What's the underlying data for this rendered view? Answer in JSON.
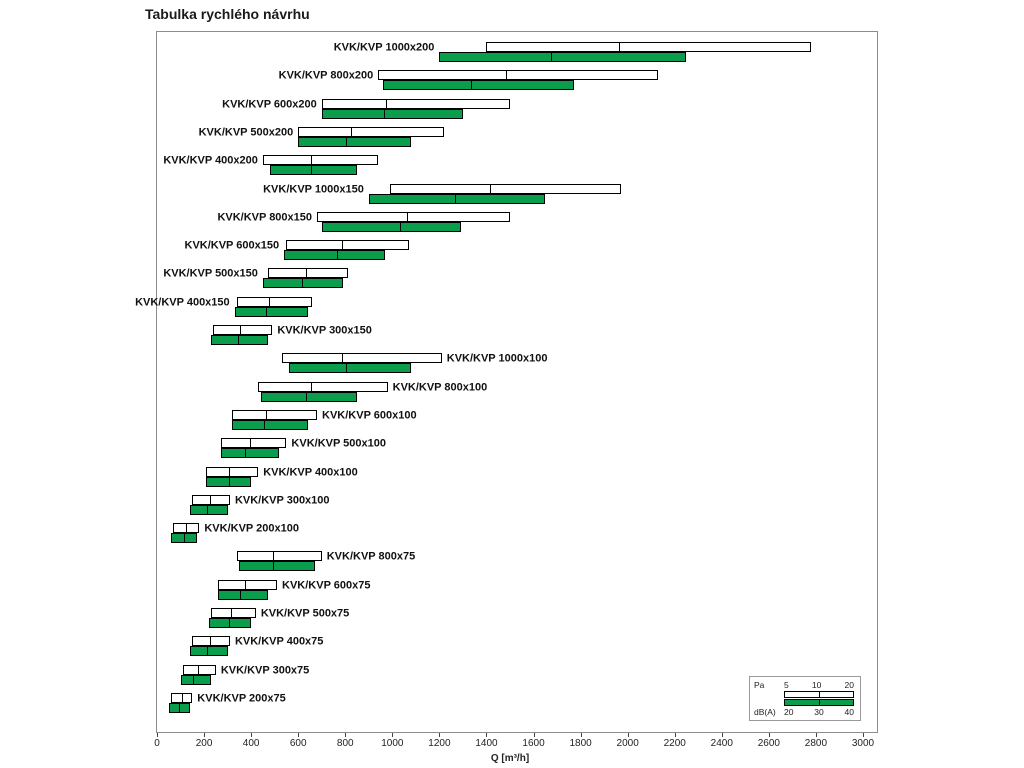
{
  "chart_data": {
    "type": "bar",
    "orientation": "horizontal",
    "title": "Tabulka rychlého návrhu",
    "xlabel": "Q [m³/h]",
    "xlim": [
      0,
      3000
    ],
    "x_ticks": [
      0,
      200,
      400,
      600,
      800,
      1000,
      1200,
      1400,
      1600,
      1800,
      2000,
      2200,
      2400,
      2600,
      2800,
      3000
    ],
    "grid": false,
    "legend_position": "bottom-right",
    "series_meta": {
      "pa": {
        "name": "Pa",
        "levels": [
          "5",
          "10",
          "20"
        ],
        "color": "#ffffff"
      },
      "dba": {
        "name": "dB(A)",
        "levels": [
          "20",
          "30",
          "40"
        ],
        "color": "#0a9e4c"
      }
    },
    "rows": [
      {
        "label": "KVK/KVP 1000x200",
        "label_side": "left",
        "pa": [
          1400,
          1960,
          2780
        ],
        "dba": [
          1200,
          1670,
          2250
        ]
      },
      {
        "label": "KVK/KVP 800x200",
        "label_side": "left",
        "pa": [
          940,
          1480,
          2130
        ],
        "dba": [
          960,
          1330,
          1770
        ]
      },
      {
        "label": "KVK/KVP 600x200",
        "label_side": "left",
        "pa": [
          700,
          970,
          1500
        ],
        "dba": [
          700,
          960,
          1300
        ]
      },
      {
        "label": "KVK/KVP 500x200",
        "label_side": "left",
        "pa": [
          600,
          820,
          1220
        ],
        "dba": [
          600,
          800,
          1080
        ]
      },
      {
        "label": "KVK/KVP 400x200",
        "label_side": "left",
        "pa": [
          450,
          650,
          940
        ],
        "dba": [
          480,
          650,
          850
        ]
      },
      {
        "label": "KVK/KVP 1000x150",
        "label_side": "left",
        "pa": [
          990,
          1410,
          1970
        ],
        "dba": [
          900,
          1260,
          1650
        ]
      },
      {
        "label": "KVK/KVP 800x150",
        "label_side": "left",
        "pa": [
          680,
          1060,
          1500
        ],
        "dba": [
          700,
          1030,
          1290
        ]
      },
      {
        "label": "KVK/KVP 600x150",
        "label_side": "left",
        "pa": [
          550,
          780,
          1070
        ],
        "dba": [
          540,
          760,
          970
        ]
      },
      {
        "label": "KVK/KVP 500x150",
        "label_side": "left",
        "pa": [
          470,
          630,
          810
        ],
        "dba": [
          450,
          610,
          790
        ]
      },
      {
        "label": "KVK/KVP 400x150",
        "label_side": "left",
        "pa": [
          340,
          470,
          660
        ],
        "dba": [
          330,
          460,
          640
        ]
      },
      {
        "label": "KVK/KVP 300x150",
        "label_side": "right",
        "pa": [
          240,
          350,
          490
        ],
        "dba": [
          230,
          340,
          470
        ]
      },
      {
        "label": "KVK/KVP 1000x100",
        "label_side": "right",
        "pa": [
          530,
          780,
          1210
        ],
        "dba": [
          560,
          800,
          1080
        ]
      },
      {
        "label": "KVK/KVP 800x100",
        "label_side": "right",
        "pa": [
          430,
          650,
          980
        ],
        "dba": [
          440,
          630,
          850
        ]
      },
      {
        "label": "KVK/KVP 600x100",
        "label_side": "right",
        "pa": [
          320,
          460,
          680
        ],
        "dba": [
          320,
          450,
          640
        ]
      },
      {
        "label": "KVK/KVP 500x100",
        "label_side": "right",
        "pa": [
          270,
          390,
          550
        ],
        "dba": [
          270,
          370,
          520
        ]
      },
      {
        "label": "KVK/KVP 400x100",
        "label_side": "right",
        "pa": [
          210,
          300,
          430
        ],
        "dba": [
          210,
          300,
          400
        ]
      },
      {
        "label": "KVK/KVP 300x100",
        "label_side": "right",
        "pa": [
          150,
          220,
          310
        ],
        "dba": [
          140,
          210,
          300
        ]
      },
      {
        "label": "KVK/KVP 200x100",
        "label_side": "right",
        "pa": [
          70,
          120,
          180
        ],
        "dba": [
          60,
          110,
          170
        ]
      },
      {
        "label": "KVK/KVP 800x75",
        "label_side": "right",
        "pa": [
          340,
          490,
          700
        ],
        "dba": [
          350,
          490,
          670
        ]
      },
      {
        "label": "KVK/KVP 600x75",
        "label_side": "right",
        "pa": [
          260,
          370,
          510
        ],
        "dba": [
          260,
          350,
          470
        ]
      },
      {
        "label": "KVK/KVP 500x75",
        "label_side": "right",
        "pa": [
          230,
          310,
          420
        ],
        "dba": [
          220,
          300,
          400
        ]
      },
      {
        "label": "KVK/KVP 400x75",
        "label_side": "right",
        "pa": [
          150,
          220,
          310
        ],
        "dba": [
          140,
          210,
          300
        ]
      },
      {
        "label": "KVK/KVP 300x75",
        "label_side": "right",
        "pa": [
          110,
          170,
          250
        ],
        "dba": [
          100,
          150,
          230
        ]
      },
      {
        "label": "KVK/KVP 200x75",
        "label_side": "right",
        "pa": [
          60,
          100,
          150
        ],
        "dba": [
          50,
          90,
          140
        ]
      }
    ]
  }
}
